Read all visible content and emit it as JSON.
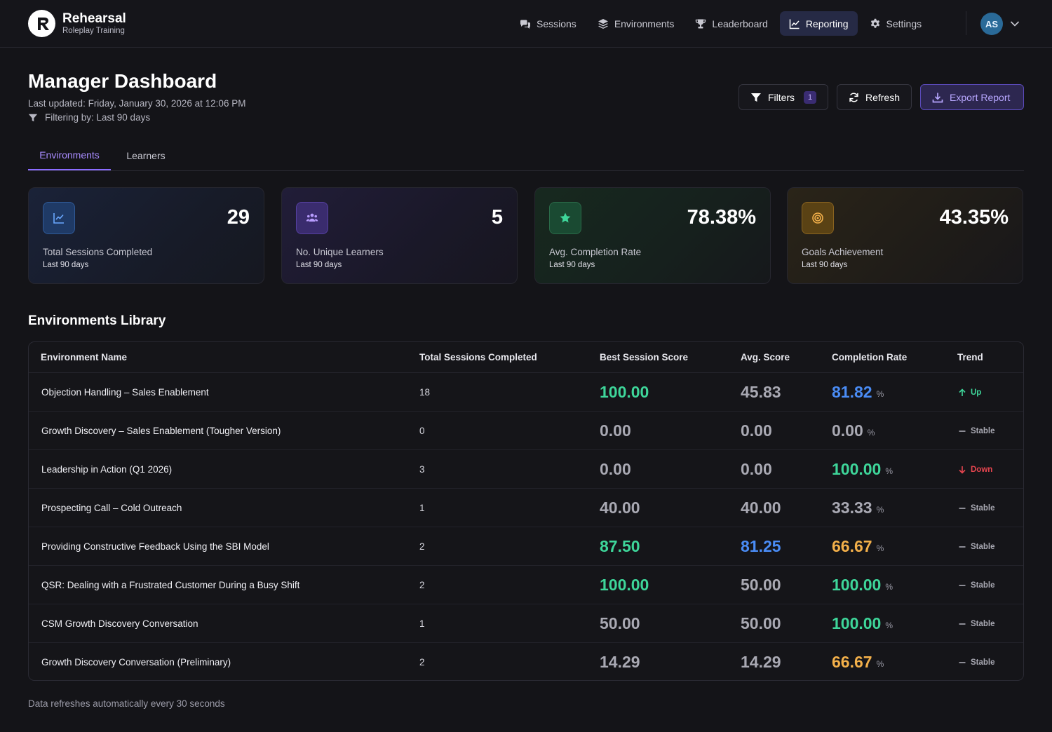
{
  "brand": {
    "name": "Rehearsal",
    "tagline": "Roleplay Training"
  },
  "nav": {
    "items": [
      {
        "label": "Sessions",
        "icon": "chat-bubbles-icon"
      },
      {
        "label": "Environments",
        "icon": "layers-icon"
      },
      {
        "label": "Leaderboard",
        "icon": "trophy-icon"
      },
      {
        "label": "Reporting",
        "icon": "chart-line-icon",
        "active": true
      },
      {
        "label": "Settings",
        "icon": "gear-icon"
      }
    ],
    "avatar_initials": "AS"
  },
  "header": {
    "title": "Manager Dashboard",
    "last_updated": "Last updated: Friday, January 30, 2026 at 12:06 PM",
    "filtering": "Filtering by: Last 90 days",
    "filters_label": "Filters",
    "filters_count": "1",
    "refresh_label": "Refresh",
    "export_label": "Export Report"
  },
  "tabs": [
    {
      "label": "Environments",
      "active": true
    },
    {
      "label": "Learners",
      "active": false
    }
  ],
  "stats": [
    {
      "value": "29",
      "label": "Total Sessions Completed",
      "sub": "Last 90 days",
      "icon": "chart-line-icon",
      "accent": "#4a8cf5"
    },
    {
      "value": "5",
      "label": "No. Unique Learners",
      "sub": "Last 90 days",
      "icon": "users-icon",
      "accent": "#9b7cff"
    },
    {
      "value": "78.38%",
      "label": "Avg. Completion Rate",
      "sub": "Last 90 days",
      "icon": "star-icon",
      "accent": "#3ed69a"
    },
    {
      "value": "43.35%",
      "label": "Goals Achievement",
      "sub": "Last 90 days",
      "icon": "target-icon",
      "accent": "#f3b04a"
    }
  ],
  "library": {
    "title": "Environments Library",
    "columns": [
      "Environment Name",
      "Total Sessions Completed",
      "Best Session Score",
      "Avg. Score",
      "Completion Rate",
      "Trend"
    ],
    "pct_symbol": "%",
    "rows": [
      {
        "name": "Objection Handling – Sales Enablement",
        "sessions": "18",
        "best": "100.00",
        "best_color": "green",
        "avg": "45.83",
        "avg_color": "gray",
        "completion": "81.82",
        "completion_color": "blue",
        "trend": "Up"
      },
      {
        "name": "Growth Discovery – Sales Enablement (Tougher Version)",
        "sessions": "0",
        "best": "0.00",
        "best_color": "gray",
        "avg": "0.00",
        "avg_color": "gray",
        "completion": "0.00",
        "completion_color": "gray",
        "trend": "Stable"
      },
      {
        "name": "Leadership in Action (Q1 2026)",
        "sessions": "3",
        "best": "0.00",
        "best_color": "gray",
        "avg": "0.00",
        "avg_color": "gray",
        "completion": "100.00",
        "completion_color": "green",
        "trend": "Down"
      },
      {
        "name": "Prospecting Call – Cold Outreach",
        "sessions": "1",
        "best": "40.00",
        "best_color": "gray",
        "avg": "40.00",
        "avg_color": "gray",
        "completion": "33.33",
        "completion_color": "gray",
        "trend": "Stable"
      },
      {
        "name": "Providing Constructive Feedback Using the SBI Model",
        "sessions": "2",
        "best": "87.50",
        "best_color": "green",
        "avg": "81.25",
        "avg_color": "blue",
        "completion": "66.67",
        "completion_color": "orange",
        "trend": "Stable"
      },
      {
        "name": "QSR: Dealing with a Frustrated Customer During a Busy Shift",
        "sessions": "2",
        "best": "100.00",
        "best_color": "green",
        "avg": "50.00",
        "avg_color": "gray",
        "completion": "100.00",
        "completion_color": "green",
        "trend": "Stable"
      },
      {
        "name": "CSM Growth Discovery Conversation",
        "sessions": "1",
        "best": "50.00",
        "best_color": "gray",
        "avg": "50.00",
        "avg_color": "gray",
        "completion": "100.00",
        "completion_color": "green",
        "trend": "Stable"
      },
      {
        "name": "Growth Discovery Conversation (Preliminary)",
        "sessions": "2",
        "best": "14.29",
        "best_color": "gray",
        "avg": "14.29",
        "avg_color": "gray",
        "completion": "66.67",
        "completion_color": "orange",
        "trend": "Stable"
      }
    ]
  },
  "footer_note": "Data refreshes automatically every 30 seconds"
}
